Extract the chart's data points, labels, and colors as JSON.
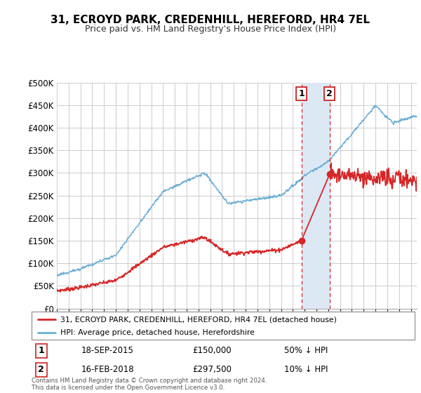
{
  "title_line1": "31, ECROYD PARK, CREDENHILL, HEREFORD, HR4 7EL",
  "title_line2": "Price paid vs. HM Land Registry's House Price Index (HPI)",
  "ylabel_ticks": [
    "£0",
    "£50K",
    "£100K",
    "£150K",
    "£200K",
    "£250K",
    "£300K",
    "£350K",
    "£400K",
    "£450K",
    "£500K"
  ],
  "ytick_values": [
    0,
    50000,
    100000,
    150000,
    200000,
    250000,
    300000,
    350000,
    400000,
    450000,
    500000
  ],
  "xlim_start": 1995.0,
  "xlim_end": 2025.5,
  "ylim_min": 0,
  "ylim_max": 500000,
  "hpi_color": "#6baed6",
  "price_color": "#d62728",
  "sale1_date": 2015.72,
  "sale1_price": 150000,
  "sale2_date": 2018.12,
  "sale2_price": 297500,
  "legend_label1": "31, ECROYD PARK, CREDENHILL, HEREFORD, HR4 7EL (detached house)",
  "legend_label2": "HPI: Average price, detached house, Herefordshire",
  "annotation1_date": "18-SEP-2015",
  "annotation1_price": "£150,000",
  "annotation1_note": "50% ↓ HPI",
  "annotation2_date": "16-FEB-2018",
  "annotation2_price": "£297,500",
  "annotation2_note": "10% ↓ HPI",
  "footer": "Contains HM Land Registry data © Crown copyright and database right 2024.\nThis data is licensed under the Open Government Licence v3.0.",
  "background_color": "#ffffff",
  "grid_color": "#cccccc",
  "span_color": "#dde8f5"
}
